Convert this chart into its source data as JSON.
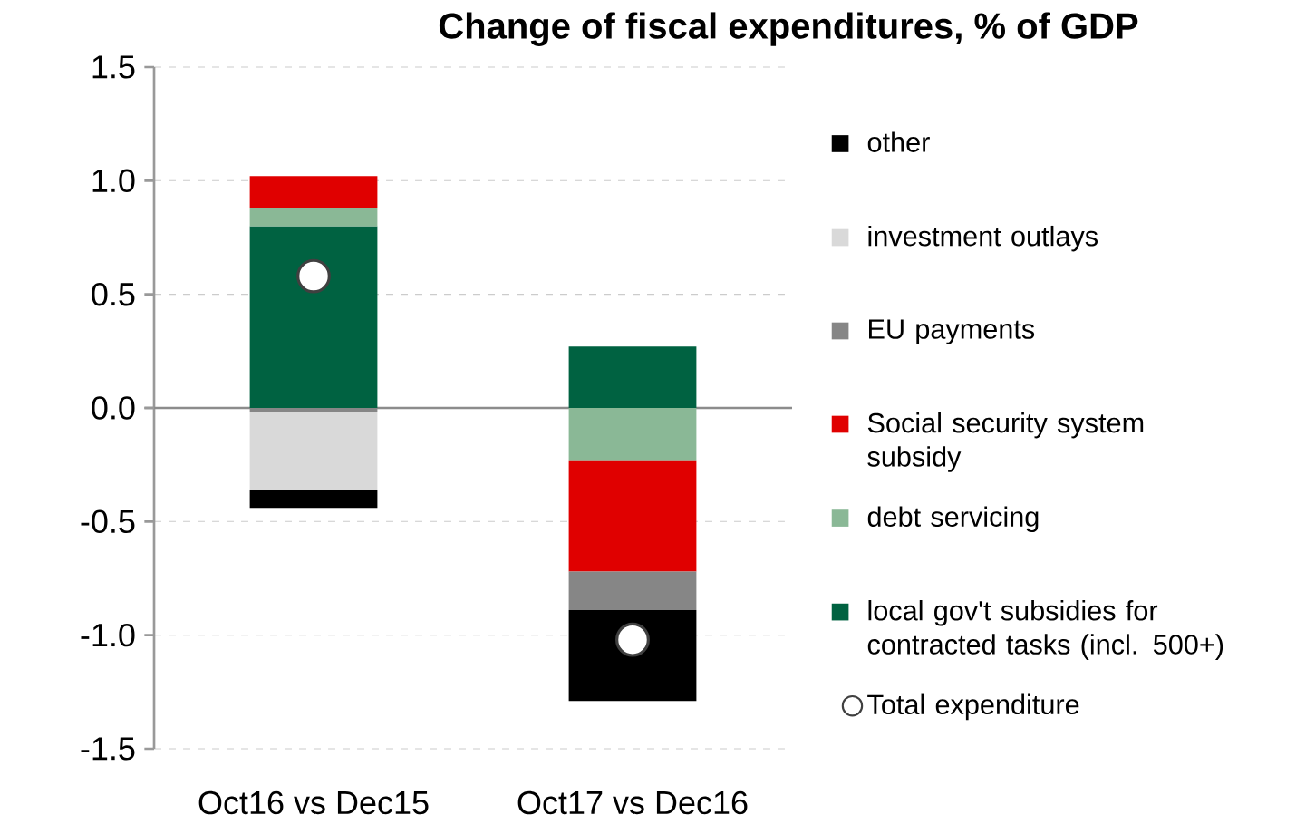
{
  "chart_data": {
    "type": "bar",
    "title": "Change of fiscal expenditures, % of GDP",
    "stacked": true,
    "categories": [
      "Oct16 vs Dec15",
      "Oct17 vs Dec16"
    ],
    "series": [
      {
        "name": "local gov't subsidies for contracted tasks (incl. 500+)",
        "color": "#006241",
        "values": [
          0.8,
          0.27
        ]
      },
      {
        "name": "debt servicing",
        "color": "#8ab896",
        "values": [
          0.08,
          -0.23
        ]
      },
      {
        "name": "Social security system subsidy",
        "color": "#e00000",
        "values": [
          0.14,
          -0.49
        ]
      },
      {
        "name": "EU payments",
        "color": "#868686",
        "values": [
          -0.02,
          -0.17
        ]
      },
      {
        "name": "investment outlays",
        "color": "#d9d9d9",
        "values": [
          -0.34,
          0
        ]
      },
      {
        "name": "other",
        "color": "#000000",
        "values": [
          -0.08,
          -0.4
        ]
      },
      {
        "name": "Total expenditure",
        "type": "scatter",
        "color": "#ffffff",
        "x": [
          "Oct16 vs Dec15",
          "Oct17 vs Dec16"
        ],
        "values": [
          0.58,
          -1.02
        ]
      }
    ],
    "ylim": [
      -1.5,
      1.5
    ],
    "yticks": [
      -1.5,
      {
        "value": -1.0,
        "label": "-1.0"
      },
      -0.5,
      {
        "value": 0.0,
        "label": "0.0"
      },
      0.5,
      {
        "value": 1.0,
        "label": "1.0"
      },
      1.5
    ],
    "grid": "y",
    "legend": "right"
  }
}
